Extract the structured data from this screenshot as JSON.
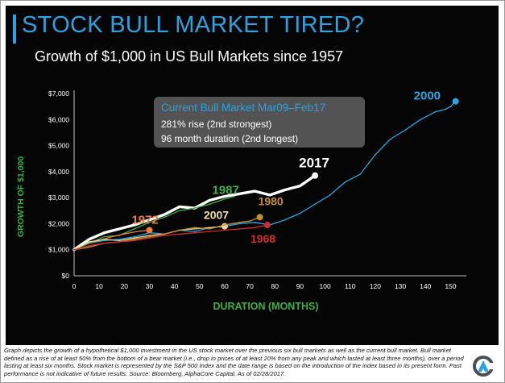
{
  "header": {
    "title": "STOCK BULL MARKET TIRED?",
    "subtitle": "Growth of $1,000 in US Bull Markets since 1957"
  },
  "colors": {
    "background": "#050505",
    "title": "#2aa3e0",
    "axis_title": "#3cb043",
    "callout_fill": "#5a5a5a"
  },
  "callout": {
    "heading": "Current Bull Market Mar09–Feb17",
    "line1": "281% rise (2nd strongest)",
    "line2": "96 month duration (2nd longest)"
  },
  "footnote": "Graph depicts the growth of a hypothetical $1,000 investment in the US stock market over the previous six bull markets as well as the current bull market. Bull market defined as a rise of at least 50% from the bottom of a bear market (i.e., drop in prices of at least 20% from any peak and which lasted at least three months), over a period lasting at least six months. Stock market is represented by the S&P 500 Index and the date range is based on the introduction of the index based in its present form. Past performance is not indicative of future results. Source: Bloomberg, AlphaCore Capital. As of 02/28/2017.",
  "logo": {
    "icon": "alphacore-logo-icon"
  },
  "chart_data": {
    "type": "line",
    "xlabel": "DURATION (MONTHS)",
    "ylabel": "GROWTH OF $1,000",
    "xlim": [
      0,
      155
    ],
    "ylim": [
      0,
      7000
    ],
    "xticks": [
      0,
      10,
      20,
      30,
      40,
      50,
      60,
      70,
      80,
      90,
      100,
      110,
      120,
      130,
      140,
      150
    ],
    "yticks": [
      0,
      1000,
      2000,
      3000,
      4000,
      5000,
      6000,
      7000
    ],
    "ytick_labels": [
      "$0",
      "$1,000",
      "$2,000",
      "$3,000",
      "$4,000",
      "$5,000",
      "$6,000",
      "$7,000"
    ],
    "grid": false,
    "legend": "none (series labelled directly on the lines)",
    "series": [
      {
        "name": "2000",
        "color": "#2ba6e3",
        "width": 1.3,
        "marker": true,
        "label_color": "#2ba6e3",
        "x": [
          0,
          6,
          12,
          18,
          24,
          30,
          36,
          42,
          48,
          54,
          60,
          66,
          72,
          78,
          84,
          90,
          96,
          102,
          108,
          114,
          120,
          126,
          132,
          138,
          144,
          148,
          150,
          152
        ],
        "y": [
          1000,
          1250,
          1350,
          1400,
          1500,
          1650,
          1600,
          1750,
          1700,
          1850,
          1900,
          2000,
          2050,
          1950,
          2150,
          2400,
          2750,
          3100,
          3600,
          3900,
          4650,
          5250,
          5600,
          6000,
          6300,
          6400,
          6500,
          6700
        ]
      },
      {
        "name": "2017",
        "color": "#ffffff",
        "width": 3.4,
        "marker": true,
        "label_color": "#ffffff",
        "x": [
          0,
          6,
          12,
          18,
          24,
          30,
          36,
          42,
          48,
          54,
          60,
          66,
          72,
          78,
          84,
          90,
          96
        ],
        "y": [
          1000,
          1400,
          1650,
          1800,
          1950,
          2150,
          2350,
          2650,
          2600,
          2900,
          3050,
          3150,
          3250,
          3100,
          3300,
          3450,
          3850
        ]
      },
      {
        "name": "1987",
        "color": "#3cb043",
        "width": 1.3,
        "marker": false,
        "label_color": "#3cb043",
        "x": [
          0,
          6,
          12,
          18,
          24,
          30,
          36,
          42,
          48,
          54,
          60,
          64
        ],
        "y": [
          1000,
          1250,
          1500,
          1550,
          1800,
          2050,
          2250,
          2500,
          2600,
          2750,
          2950,
          3050
        ]
      },
      {
        "name": "1972",
        "color": "#f07f3c",
        "width": 1.3,
        "marker": true,
        "label_color": "#f07f3c",
        "x": [
          0,
          5,
          10,
          15,
          20,
          25,
          30
        ],
        "y": [
          1000,
          1250,
          1350,
          1500,
          1600,
          1700,
          1750
        ]
      },
      {
        "name": "2007",
        "color": "#e8d9a0",
        "width": 1.3,
        "marker": true,
        "label_color": "#f3dfa6",
        "x": [
          0,
          6,
          12,
          18,
          24,
          30,
          36,
          42,
          48,
          54,
          60
        ],
        "y": [
          1000,
          1300,
          1400,
          1350,
          1450,
          1550,
          1600,
          1750,
          1800,
          1850,
          1900
        ]
      },
      {
        "name": "1980",
        "color": "#c8902a",
        "width": 1.3,
        "marker": true,
        "label_color": "#c8902a",
        "x": [
          0,
          6,
          12,
          18,
          24,
          30,
          36,
          42,
          48,
          54,
          60,
          66,
          70,
          74
        ],
        "y": [
          1000,
          1100,
          1250,
          1300,
          1400,
          1500,
          1600,
          1750,
          1850,
          1800,
          1950,
          2050,
          2100,
          2250
        ]
      },
      {
        "name": "1968",
        "color": "#d12c2c",
        "width": 1.3,
        "marker": true,
        "label_color": "#d12c2c",
        "x": [
          0,
          6,
          12,
          18,
          24,
          30,
          36,
          42,
          48,
          54,
          60,
          66,
          72,
          77
        ],
        "y": [
          1000,
          1150,
          1250,
          1300,
          1350,
          1450,
          1550,
          1600,
          1650,
          1700,
          1750,
          1800,
          1850,
          1950
        ]
      }
    ]
  }
}
